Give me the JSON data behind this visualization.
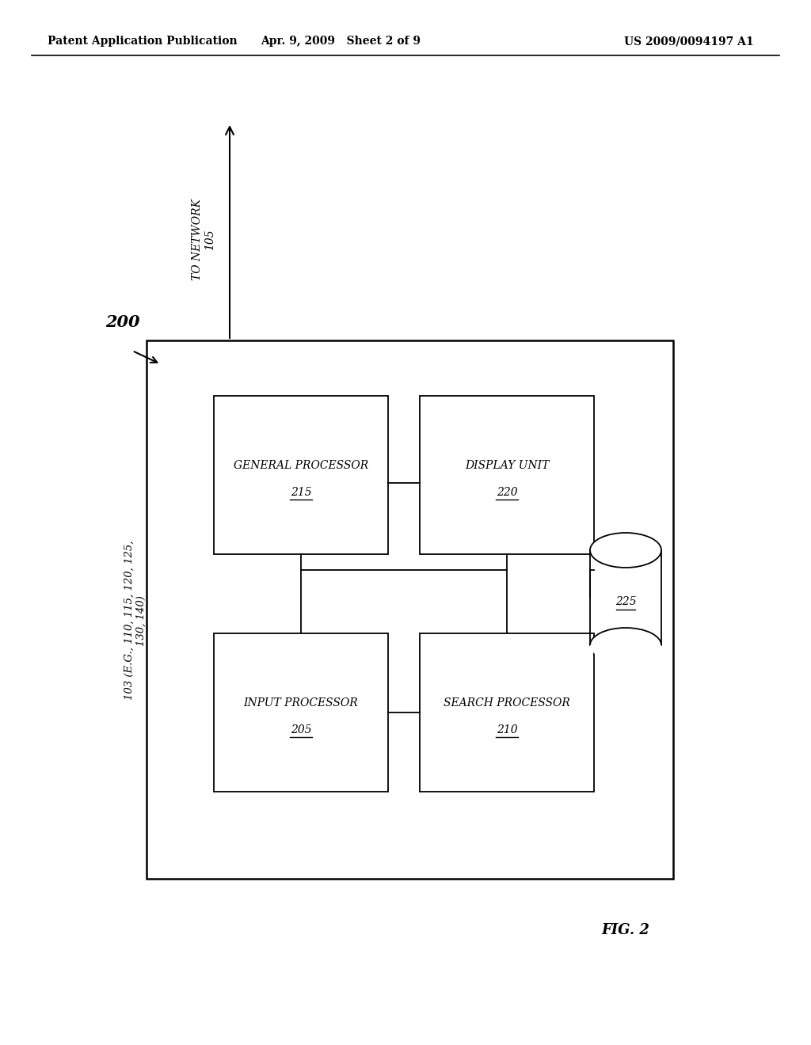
{
  "bg_color": "#ffffff",
  "header_left": "Patent Application Publication",
  "header_mid": "Apr. 9, 2009   Sheet 2 of 9",
  "header_right": "US 2009/0094197 A1",
  "fig_label": "FIG. 2",
  "outer_box_label": "200",
  "network_label": "TO NETWORK\n105",
  "device_label": "103 (E.G., 110, 115, 120, 125,\n130, 140)",
  "gp_label_main": "GENERAL PROCESSOR",
  "gp_label_num": "215",
  "du_label_main": "DISPLAY UNIT",
  "du_label_num": "220",
  "ip_label_main": "INPUT PROCESSOR",
  "ip_label_num": "205",
  "sp_label_main": "SEARCH PROCESSOR",
  "sp_label_num": "210",
  "cyl_label": "225"
}
